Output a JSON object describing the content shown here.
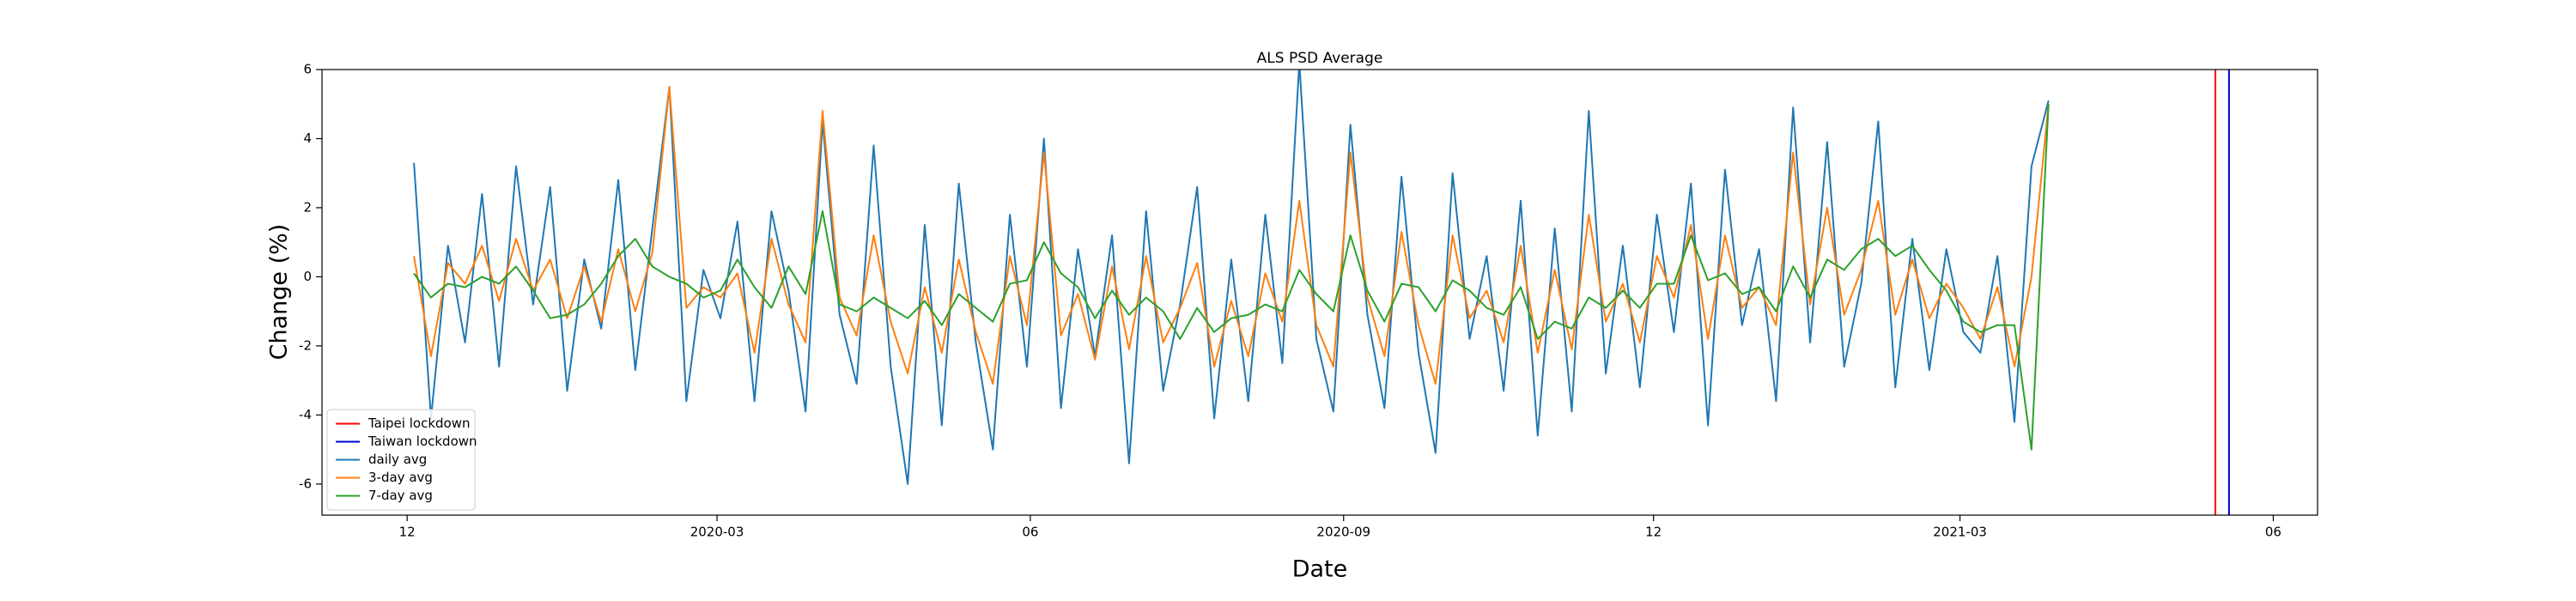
{
  "chart_data": {
    "type": "line",
    "title": "ALS PSD Average",
    "xlabel": "Date",
    "ylabel": "Change (%)",
    "x": [
      "2019-12-03",
      "2019-12-08",
      "2019-12-13",
      "2019-12-18",
      "2019-12-23",
      "2019-12-28",
      "2020-01-02",
      "2020-01-07",
      "2020-01-12",
      "2020-01-17",
      "2020-01-22",
      "2020-01-27",
      "2020-02-01",
      "2020-02-06",
      "2020-02-11",
      "2020-02-16",
      "2020-02-21",
      "2020-02-26",
      "2020-03-02",
      "2020-03-07",
      "2020-03-12",
      "2020-03-17",
      "2020-03-22",
      "2020-03-27",
      "2020-04-01",
      "2020-04-06",
      "2020-04-11",
      "2020-04-16",
      "2020-04-21",
      "2020-04-26",
      "2020-05-01",
      "2020-05-06",
      "2020-05-11",
      "2020-05-16",
      "2020-05-21",
      "2020-05-26",
      "2020-05-31",
      "2020-06-05",
      "2020-06-10",
      "2020-06-15",
      "2020-06-20",
      "2020-06-25",
      "2020-06-30",
      "2020-07-05",
      "2020-07-10",
      "2020-07-15",
      "2020-07-20",
      "2020-07-25",
      "2020-07-30",
      "2020-08-04",
      "2020-08-09",
      "2020-08-14",
      "2020-08-19",
      "2020-08-24",
      "2020-08-29",
      "2020-09-03",
      "2020-09-08",
      "2020-09-13",
      "2020-09-18",
      "2020-09-23",
      "2020-09-28",
      "2020-10-03",
      "2020-10-08",
      "2020-10-13",
      "2020-10-18",
      "2020-10-23",
      "2020-10-28",
      "2020-11-02",
      "2020-11-07",
      "2020-11-12",
      "2020-11-17",
      "2020-11-22",
      "2020-11-27",
      "2020-12-02",
      "2020-12-07",
      "2020-12-12",
      "2020-12-17",
      "2020-12-22",
      "2020-12-27",
      "2021-01-01",
      "2021-01-06",
      "2021-01-11",
      "2021-01-16",
      "2021-01-21",
      "2021-01-26",
      "2021-01-31",
      "2021-02-05",
      "2021-02-10",
      "2021-02-15",
      "2021-02-20",
      "2021-02-25",
      "2021-03-02",
      "2021-03-07",
      "2021-03-12",
      "2021-03-17",
      "2021-03-22",
      "2021-03-27"
    ],
    "series": [
      {
        "name": "daily avg",
        "color": "#1f77b4",
        "values": [
          3.3,
          -4.1,
          0.9,
          -1.9,
          2.4,
          -2.6,
          3.2,
          -0.8,
          2.6,
          -3.3,
          0.5,
          -1.5,
          2.8,
          -2.7,
          1.4,
          5.5,
          -3.6,
          0.2,
          -1.2,
          1.6,
          -3.6,
          1.9,
          -0.4,
          -3.9,
          4.5,
          -1.1,
          -3.1,
          3.8,
          -2.6,
          -6.0,
          1.5,
          -4.3,
          2.7,
          -1.9,
          -5.0,
          1.8,
          -2.6,
          4.0,
          -3.8,
          0.8,
          -2.3,
          1.2,
          -5.4,
          1.9,
          -3.3,
          -0.8,
          2.6,
          -4.1,
          0.5,
          -3.6,
          1.8,
          -2.5,
          6.2,
          -1.8,
          -3.9,
          4.4,
          -1.1,
          -3.8,
          2.9,
          -2.2,
          -5.1,
          3.0,
          -1.8,
          0.6,
          -3.3,
          2.2,
          -4.6,
          1.4,
          -3.9,
          4.8,
          -2.8,
          0.9,
          -3.2,
          1.8,
          -1.6,
          2.7,
          -4.3,
          3.1,
          -1.4,
          0.8,
          -3.6,
          4.9,
          -1.9,
          3.9,
          -2.6,
          -0.2,
          4.5,
          -3.2,
          1.1,
          -2.7,
          0.8,
          -1.6,
          -2.2,
          0.6,
          -4.2,
          3.2,
          5.1
        ]
      },
      {
        "name": "3-day avg",
        "color": "#ff7f0e",
        "values": [
          0.6,
          -2.3,
          0.4,
          -0.2,
          0.9,
          -0.7,
          1.1,
          -0.4,
          0.5,
          -1.2,
          0.3,
          -1.3,
          0.8,
          -1.0,
          0.7,
          5.5,
          -0.9,
          -0.3,
          -0.6,
          0.1,
          -2.2,
          1.1,
          -0.8,
          -1.9,
          4.8,
          -0.6,
          -1.7,
          1.2,
          -1.3,
          -2.8,
          -0.3,
          -2.2,
          0.5,
          -1.6,
          -3.1,
          0.6,
          -1.4,
          3.6,
          -1.7,
          -0.5,
          -2.4,
          0.3,
          -2.1,
          0.6,
          -1.9,
          -0.9,
          0.4,
          -2.6,
          -0.7,
          -2.3,
          0.1,
          -1.3,
          2.2,
          -1.4,
          -2.6,
          3.6,
          -0.6,
          -2.3,
          1.3,
          -1.4,
          -3.1,
          1.2,
          -1.2,
          -0.4,
          -1.9,
          0.9,
          -2.2,
          0.2,
          -2.1,
          1.8,
          -1.3,
          -0.2,
          -1.9,
          0.6,
          -0.6,
          1.5,
          -1.8,
          1.2,
          -0.9,
          -0.3,
          -1.4,
          3.6,
          -0.8,
          2.0,
          -1.1,
          0.2,
          2.2,
          -1.1,
          0.5,
          -1.2,
          -0.2,
          -0.9,
          -1.8,
          -0.3,
          -2.6,
          0.0,
          5.0
        ]
      },
      {
        "name": "7-day avg",
        "color": "#2ca02c",
        "values": [
          0.1,
          -0.6,
          -0.2,
          -0.3,
          0.0,
          -0.2,
          0.3,
          -0.4,
          -1.2,
          -1.1,
          -0.8,
          -0.2,
          0.6,
          1.1,
          0.3,
          0.0,
          -0.2,
          -0.6,
          -0.4,
          0.5,
          -0.3,
          -0.9,
          0.3,
          -0.5,
          1.9,
          -0.8,
          -1.0,
          -0.6,
          -0.9,
          -1.2,
          -0.7,
          -1.4,
          -0.5,
          -0.9,
          -1.3,
          -0.2,
          -0.1,
          1.0,
          0.1,
          -0.3,
          -1.2,
          -0.4,
          -1.1,
          -0.6,
          -1.0,
          -1.8,
          -0.9,
          -1.6,
          -1.2,
          -1.1,
          -0.8,
          -1.0,
          0.2,
          -0.5,
          -1.0,
          1.2,
          -0.4,
          -1.3,
          -0.2,
          -0.3,
          -1.0,
          -0.1,
          -0.4,
          -0.9,
          -1.1,
          -0.3,
          -1.8,
          -1.3,
          -1.5,
          -0.6,
          -0.9,
          -0.4,
          -0.9,
          -0.2,
          -0.2,
          1.2,
          -0.1,
          0.1,
          -0.5,
          -0.3,
          -1.0,
          0.3,
          -0.6,
          0.5,
          0.2,
          0.8,
          1.1,
          0.6,
          0.9,
          0.2,
          -0.4,
          -1.3,
          -1.6,
          -1.4,
          -1.4,
          -5.0,
          5.0
        ]
      }
    ],
    "events": [
      {
        "name": "Taipei lockdown",
        "x": "2021-05-15",
        "color": "#ff0000"
      },
      {
        "name": "Taiwan lockdown",
        "x": "2021-05-19",
        "color": "#0000cd"
      }
    ],
    "xlim": [
      "2019-11-06",
      "2021-06-14"
    ],
    "xticks": [
      {
        "value": "2019-12-01",
        "label": "12"
      },
      {
        "value": "2020-03-01",
        "label": "2020-03"
      },
      {
        "value": "2020-06-01",
        "label": "06"
      },
      {
        "value": "2020-09-01",
        "label": "2020-09"
      },
      {
        "value": "2020-12-01",
        "label": "12"
      },
      {
        "value": "2021-03-01",
        "label": "2021-03"
      },
      {
        "value": "2021-06-01",
        "label": "06"
      }
    ],
    "ylim": [
      -6.9,
      6
    ],
    "yticks": [
      -6,
      -4,
      -2,
      0,
      2,
      4,
      6
    ],
    "grid": false,
    "legend": "lower left"
  }
}
